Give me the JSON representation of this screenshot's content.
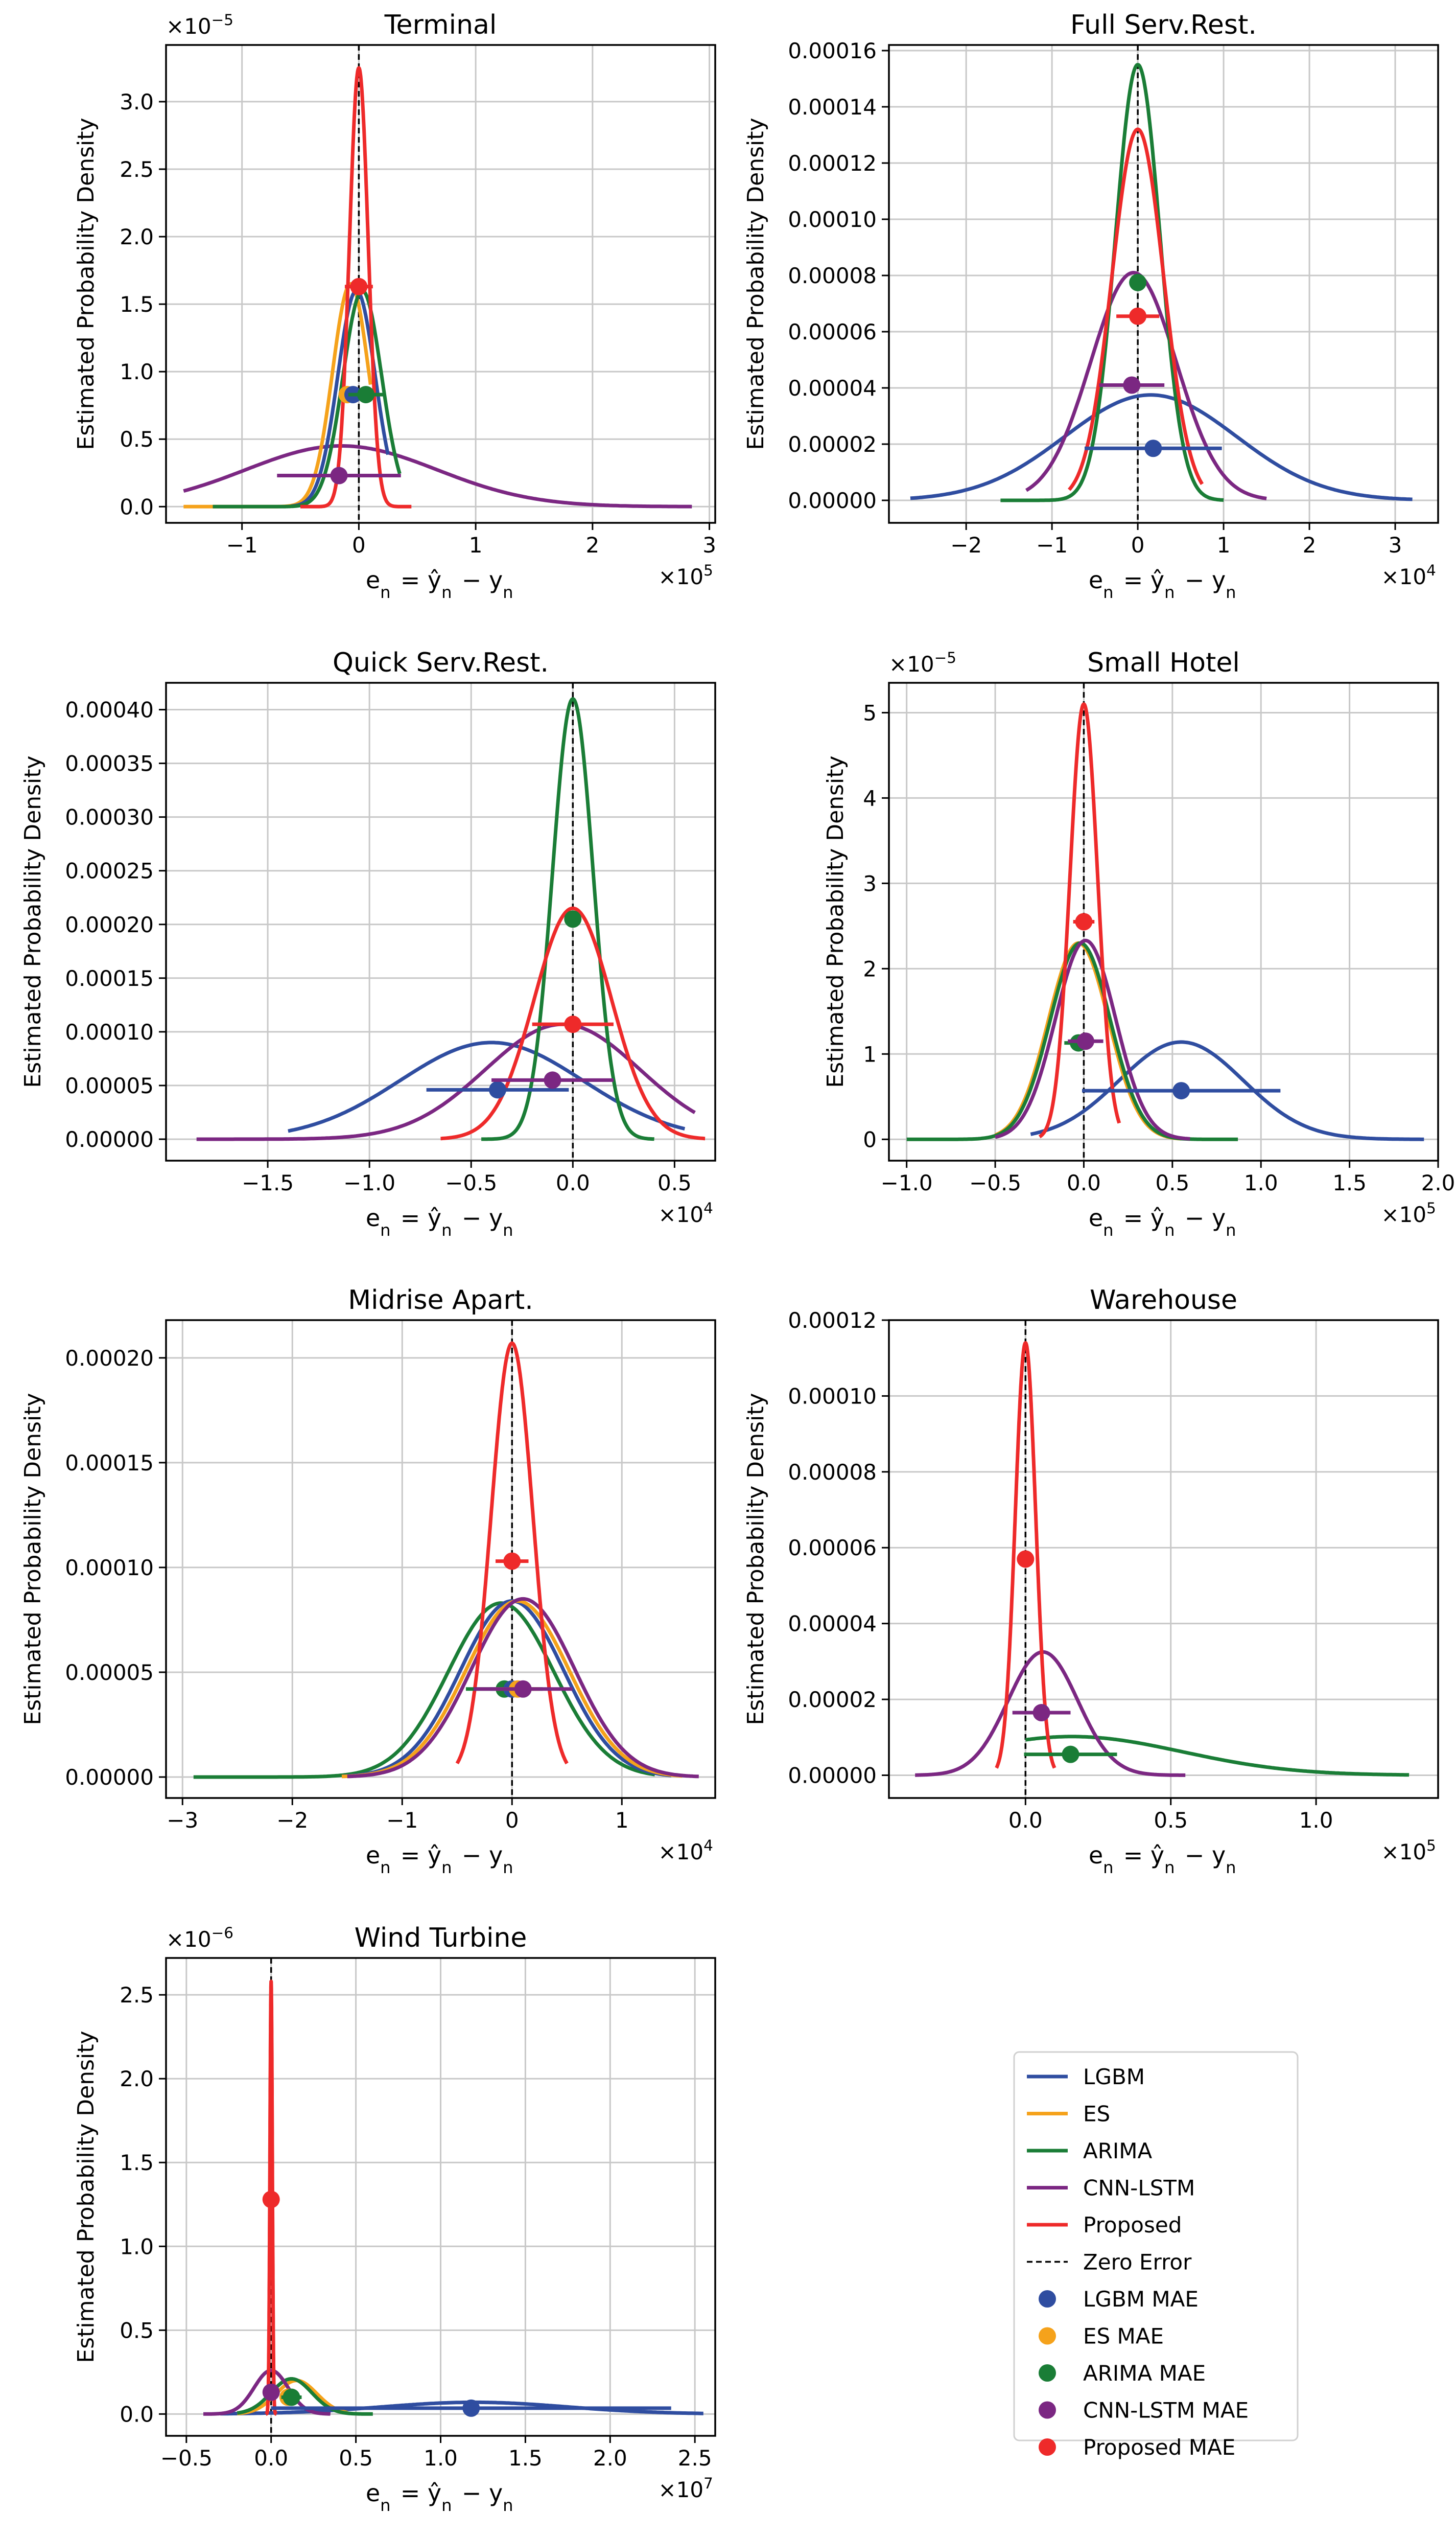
{
  "colors": {
    "LGBM": "#2f4da0",
    "ES": "#f5a21b",
    "ARIMA": "#1a7d36",
    "CNN-LSTM": "#7b2782",
    "Proposed": "#ee2a2a",
    "zero": "#000000",
    "grid": "#c8c8c8"
  },
  "legend": {
    "entries": [
      {
        "label": "LGBM",
        "kind": "line",
        "key": "LGBM"
      },
      {
        "label": "ES",
        "kind": "line",
        "key": "ES"
      },
      {
        "label": "ARIMA",
        "kind": "line",
        "key": "ARIMA"
      },
      {
        "label": "CNN-LSTM",
        "kind": "line",
        "key": "CNN-LSTM"
      },
      {
        "label": "Proposed",
        "kind": "line",
        "key": "Proposed"
      },
      {
        "label": "Zero Error",
        "kind": "dash",
        "key": "zero"
      },
      {
        "label": "LGBM MAE",
        "kind": "marker",
        "key": "LGBM"
      },
      {
        "label": "ES MAE",
        "kind": "marker",
        "key": "ES"
      },
      {
        "label": "ARIMA MAE",
        "kind": "marker",
        "key": "ARIMA"
      },
      {
        "label": "CNN-LSTM MAE",
        "kind": "marker",
        "key": "CNN-LSTM"
      },
      {
        "label": "Proposed MAE",
        "kind": "marker",
        "key": "Proposed"
      }
    ]
  },
  "chart_data": [
    {
      "type": "line",
      "title": "Terminal",
      "xlabel": "e_n = ŷ_n − y_n",
      "ylabel": "Estimated Probability Density",
      "xmult": "×10^5",
      "ymult": "×10^−5",
      "xlim": [
        -1.65,
        3.05
      ],
      "ylim": [
        -0.12,
        3.42
      ],
      "xticks": [
        -1,
        0,
        1,
        2,
        3
      ],
      "xtick_labels": [
        "−1",
        "0",
        "1",
        "2",
        "3"
      ],
      "yticks": [
        0,
        0.5,
        1,
        1.5,
        2,
        2.5,
        3
      ],
      "ytick_labels": [
        "0.0",
        "0.5",
        "1.0",
        "1.5",
        "2.0",
        "2.5",
        "3.0"
      ],
      "grid": true,
      "curves": [
        {
          "key": "CNN-LSTM",
          "mu": -0.15,
          "sd": 0.82,
          "peak": 0.45,
          "range": [
            -1.5,
            2.85
          ]
        },
        {
          "key": "ES",
          "mu": -0.07,
          "sd": 0.155,
          "peak": 1.65,
          "range": [
            -1.5,
            0.1
          ]
        },
        {
          "key": "LGBM",
          "mu": -0.02,
          "sd": 0.16,
          "peak": 1.6,
          "range": [
            -0.58,
            0.25
          ]
        },
        {
          "key": "ARIMA",
          "mu": 0.03,
          "sd": 0.165,
          "peak": 1.6,
          "range": [
            -1.25,
            0.35
          ]
        },
        {
          "key": "Proposed",
          "mu": 0.0,
          "sd": 0.08,
          "peak": 3.25,
          "range": [
            -0.5,
            0.45
          ]
        }
      ],
      "mae": [
        {
          "key": "CNN-LSTM",
          "x": -0.17,
          "y": 0.23,
          "err": 0.53
        },
        {
          "key": "ES",
          "x": -0.1,
          "y": 0.83,
          "err": 0.05
        },
        {
          "key": "LGBM",
          "x": -0.05,
          "y": 0.83,
          "err": 0.05
        },
        {
          "key": "ARIMA",
          "x": 0.06,
          "y": 0.83,
          "err": 0.15
        },
        {
          "key": "Proposed",
          "x": 0.0,
          "y": 1.63,
          "err": 0.12
        }
      ]
    },
    {
      "type": "line",
      "title": "Full Serv.Rest.",
      "xlabel": "e_n = ŷ_n − y_n",
      "ylabel": "Estimated Probability Density",
      "xmult": "×10^4",
      "ymult": "",
      "xlim": [
        -2.9,
        3.5
      ],
      "ylim": [
        -8e-06,
        0.000162
      ],
      "xticks": [
        -2,
        -1,
        0,
        1,
        2,
        3
      ],
      "xtick_labels": [
        "−2",
        "−1",
        "0",
        "1",
        "2",
        "3"
      ],
      "yticks": [
        0,
        2e-05,
        4e-05,
        6e-05,
        8e-05,
        0.0001,
        0.00012,
        0.00014,
        0.00016
      ],
      "ytick_labels": [
        "0.00000",
        "0.00002",
        "0.00004",
        "0.00006",
        "0.00008",
        "0.00010",
        "0.00012",
        "0.00014",
        "0.00016"
      ],
      "grid": true,
      "curves": [
        {
          "key": "LGBM",
          "mu": 0.15,
          "sd": 1.0,
          "peak": 3.75e-05,
          "range": [
            -2.65,
            3.2
          ]
        },
        {
          "key": "CNN-LSTM",
          "mu": -0.05,
          "sd": 0.5,
          "peak": 8.1e-05,
          "range": [
            -1.3,
            1.5
          ]
        },
        {
          "key": "ARIMA",
          "mu": 0.0,
          "sd": 0.26,
          "peak": 0.000155,
          "range": [
            -1.6,
            1.0
          ]
        },
        {
          "key": "Proposed",
          "mu": 0.0,
          "sd": 0.3,
          "peak": 0.000132,
          "range": [
            -0.8,
            0.75
          ]
        }
      ],
      "mae": [
        {
          "key": "LGBM",
          "x": 0.18,
          "y": 1.85e-05,
          "err": 0.8
        },
        {
          "key": "CNN-LSTM",
          "x": -0.07,
          "y": 4.1e-05,
          "err": 0.38
        },
        {
          "key": "ARIMA",
          "x": 0.0,
          "y": 7.75e-05,
          "err": 0.0
        },
        {
          "key": "Proposed",
          "x": 0.0,
          "y": 6.55e-05,
          "err": 0.25
        }
      ]
    },
    {
      "type": "line",
      "title": "Quick Serv.Rest.",
      "xlabel": "e_n = ŷ_n − y_n",
      "ylabel": "Estimated Probability Density",
      "xmult": "×10^4",
      "ymult": "",
      "xlim": [
        -2.0,
        0.7
      ],
      "ylim": [
        -2e-05,
        0.000425
      ],
      "xticks": [
        -1.5,
        -1.0,
        -0.5,
        0.0,
        0.5
      ],
      "xtick_labels": [
        "−1.5",
        "−1.0",
        "−0.5",
        "0.0",
        "0.5"
      ],
      "yticks": [
        0,
        5e-05,
        0.0001,
        0.00015,
        0.0002,
        0.00025,
        0.0003,
        0.00035,
        0.0004
      ],
      "ytick_labels": [
        "0.00000",
        "0.00005",
        "0.00010",
        "0.00015",
        "0.00020",
        "0.00025",
        "0.00030",
        "0.00035",
        "0.00040"
      ],
      "grid": true,
      "curves": [
        {
          "key": "LGBM",
          "mu": -0.4,
          "sd": 0.45,
          "peak": 9e-05,
          "range": [
            -1.4,
            0.55
          ]
        },
        {
          "key": "CNN-LSTM",
          "mu": -0.05,
          "sd": 0.38,
          "peak": 0.000107,
          "range": [
            -1.85,
            0.6
          ]
        },
        {
          "key": "ARIMA",
          "mu": 0.0,
          "sd": 0.1,
          "peak": 0.00041,
          "range": [
            -0.45,
            0.4
          ]
        },
        {
          "key": "Proposed",
          "mu": 0.0,
          "sd": 0.19,
          "peak": 0.000215,
          "range": [
            -0.65,
            0.65
          ]
        }
      ],
      "mae": [
        {
          "key": "LGBM",
          "x": -0.37,
          "y": 4.6e-05,
          "err": 0.35
        },
        {
          "key": "CNN-LSTM",
          "x": -0.1,
          "y": 5.5e-05,
          "err": 0.3
        },
        {
          "key": "ARIMA",
          "x": 0.0,
          "y": 0.000205,
          "err": 0.0
        },
        {
          "key": "Proposed",
          "x": 0.0,
          "y": 0.000107,
          "err": 0.2
        }
      ]
    },
    {
      "type": "line",
      "title": "Small Hotel",
      "xlabel": "e_n = ŷ_n − y_n",
      "ylabel": "Estimated Probability Density",
      "xmult": "×10^5",
      "ymult": "×10^−5",
      "xlim": [
        -1.1,
        2.0
      ],
      "ylim": [
        -0.25,
        5.35
      ],
      "xticks": [
        -1.0,
        -0.5,
        0.0,
        0.5,
        1.0,
        1.5,
        2.0
      ],
      "xtick_labels": [
        "−1.0",
        "−0.5",
        "0.0",
        "0.5",
        "1.0",
        "1.5",
        "2.0"
      ],
      "yticks": [
        0,
        1,
        2,
        3,
        4,
        5
      ],
      "ytick_labels": [
        "0",
        "1",
        "2",
        "3",
        "4",
        "5"
      ],
      "grid": true,
      "curves": [
        {
          "key": "LGBM",
          "mu": 0.55,
          "sd": 0.35,
          "peak": 1.14,
          "range": [
            -0.3,
            1.92
          ]
        },
        {
          "key": "ES",
          "mu": -0.03,
          "sd": 0.17,
          "peak": 2.3,
          "range": [
            -0.5,
            0.55
          ]
        },
        {
          "key": "ARIMA",
          "mu": -0.02,
          "sd": 0.17,
          "peak": 2.3,
          "range": [
            -1.0,
            0.87
          ]
        },
        {
          "key": "CNN-LSTM",
          "mu": 0.01,
          "sd": 0.17,
          "peak": 2.33,
          "range": [
            -0.5,
            0.6
          ]
        },
        {
          "key": "Proposed",
          "mu": 0.0,
          "sd": 0.078,
          "peak": 5.1,
          "range": [
            -0.25,
            0.2
          ]
        }
      ],
      "mae": [
        {
          "key": "LGBM",
          "x": 0.55,
          "y": 0.57,
          "err": 0.56
        },
        {
          "key": "ARIMA",
          "x": -0.03,
          "y": 1.13,
          "err": 0.08
        },
        {
          "key": "CNN-LSTM",
          "x": 0.01,
          "y": 1.15,
          "err": 0.1
        },
        {
          "key": "Proposed",
          "x": 0.0,
          "y": 2.55,
          "err": 0.06
        }
      ]
    },
    {
      "type": "line",
      "title": "Midrise Apart.",
      "xlabel": "e_n = ŷ_n − y_n",
      "ylabel": "Estimated Probability Density",
      "xmult": "×10^4",
      "ymult": "",
      "xlim": [
        -3.15,
        1.85
      ],
      "ylim": [
        -1e-05,
        0.000218
      ],
      "xticks": [
        -3,
        -2,
        -1,
        0,
        1
      ],
      "xtick_labels": [
        "−3",
        "−2",
        "−1",
        "0",
        "1"
      ],
      "yticks": [
        0,
        5e-05,
        0.0001,
        0.00015,
        0.0002
      ],
      "ytick_labels": [
        "0.00000",
        "0.00005",
        "0.00010",
        "0.00015",
        "0.00020"
      ],
      "grid": true,
      "curves": [
        {
          "key": "ARIMA",
          "mu": -0.1,
          "sd": 0.48,
          "peak": 8.3e-05,
          "range": [
            -2.9,
            1.3
          ]
        },
        {
          "key": "LGBM",
          "mu": 0.0,
          "sd": 0.47,
          "peak": 8.4e-05,
          "range": [
            -1.55,
            1.45
          ]
        },
        {
          "key": "ES",
          "mu": 0.05,
          "sd": 0.47,
          "peak": 8.4e-05,
          "range": [
            -1.55,
            1.55
          ]
        },
        {
          "key": "CNN-LSTM",
          "mu": 0.1,
          "sd": 0.47,
          "peak": 8.5e-05,
          "range": [
            -1.5,
            1.7
          ]
        },
        {
          "key": "Proposed",
          "mu": 0.0,
          "sd": 0.19,
          "peak": 0.000207,
          "range": [
            -0.5,
            0.5
          ]
        }
      ],
      "mae": [
        {
          "key": "ARIMA",
          "x": -0.07,
          "y": 4.2e-05,
          "err": 0.35
        },
        {
          "key": "LGBM",
          "x": 0.0,
          "y": 4.2e-05,
          "err": 0.2
        },
        {
          "key": "ES",
          "x": 0.05,
          "y": 4.2e-05,
          "err": 0.2
        },
        {
          "key": "CNN-LSTM",
          "x": 0.1,
          "y": 4.2e-05,
          "err": 0.45
        },
        {
          "key": "Proposed",
          "x": 0.0,
          "y": 0.000103,
          "err": 0.15
        }
      ]
    },
    {
      "type": "line",
      "title": "Warehouse",
      "xlabel": "e_n = ŷ_n − y_n",
      "ylabel": "Estimated Probability Density",
      "xmult": "×10^5",
      "ymult": "",
      "xlim": [
        -0.47,
        1.42
      ],
      "ylim": [
        -6e-06,
        0.00012
      ],
      "xticks": [
        0.0,
        0.5,
        1.0
      ],
      "xtick_labels": [
        "0.0",
        "0.5",
        "1.0"
      ],
      "yticks": [
        0,
        2e-05,
        4e-05,
        6e-05,
        8e-05,
        0.0001,
        0.00012
      ],
      "ytick_labels": [
        "0.00000",
        "0.00002",
        "0.00004",
        "0.00006",
        "0.00008",
        "0.00010",
        "0.00012"
      ],
      "grid": true,
      "curves": [
        {
          "key": "ARIMA",
          "mu": 0.16,
          "sd": 0.38,
          "peak": 1.02e-05,
          "range": [
            0.0,
            1.32
          ]
        },
        {
          "key": "CNN-LSTM",
          "mu": 0.06,
          "sd": 0.12,
          "peak": 3.25e-05,
          "range": [
            -0.38,
            0.55
          ]
        },
        {
          "key": "Proposed",
          "mu": 0.0,
          "sd": 0.035,
          "peak": 0.000114,
          "range": [
            -0.1,
            0.1
          ]
        }
      ],
      "mae": [
        {
          "key": "ARIMA",
          "x": 0.155,
          "y": 5.5e-06,
          "err": 0.16
        },
        {
          "key": "CNN-LSTM",
          "x": 0.055,
          "y": 1.65e-05,
          "err": 0.1
        },
        {
          "key": "Proposed",
          "x": 0.0,
          "y": 5.7e-05,
          "err": 0.0
        }
      ]
    },
    {
      "type": "line",
      "title": "Wind Turbine",
      "xlabel": "e_n = ŷ_n − y_n",
      "ylabel": "Estimated Probability Density",
      "xmult": "×10^7",
      "ymult": "×10^−6",
      "xlim": [
        -0.62,
        2.62
      ],
      "ylim": [
        -0.13,
        2.72
      ],
      "xticks": [
        -0.5,
        0.0,
        0.5,
        1.0,
        1.5,
        2.0,
        2.5
      ],
      "xtick_labels": [
        "−0.5",
        "0.0",
        "0.5",
        "1.0",
        "1.5",
        "2.0",
        "2.5"
      ],
      "yticks": [
        0,
        0.5,
        1,
        1.5,
        2,
        2.5
      ],
      "ytick_labels": [
        "0.0",
        "0.5",
        "1.0",
        "1.5",
        "2.0",
        "2.5"
      ],
      "grid": true,
      "curves": [
        {
          "key": "LGBM",
          "mu": 1.2,
          "sd": 0.55,
          "peak": 0.07,
          "range": [
            -0.3,
            2.55
          ]
        },
        {
          "key": "ES",
          "mu": 0.15,
          "sd": 0.12,
          "peak": 0.2,
          "range": [
            -0.2,
            0.45
          ]
        },
        {
          "key": "ARIMA",
          "mu": 0.12,
          "sd": 0.12,
          "peak": 0.21,
          "range": [
            -0.2,
            0.6
          ]
        },
        {
          "key": "CNN-LSTM",
          "mu": 0.0,
          "sd": 0.1,
          "peak": 0.26,
          "range": [
            -0.4,
            0.35
          ]
        },
        {
          "key": "Proposed",
          "mu": 0.0,
          "sd": 0.007,
          "peak": 2.58,
          "range": [
            -0.03,
            0.03
          ]
        }
      ],
      "mae": [
        {
          "key": "LGBM",
          "x": 1.18,
          "y": 0.035,
          "err": 1.18
        },
        {
          "key": "ES",
          "x": 0.1,
          "y": 0.1,
          "err": 0.05
        },
        {
          "key": "ARIMA",
          "x": 0.12,
          "y": 0.1,
          "err": 0.06
        },
        {
          "key": "CNN-LSTM",
          "x": 0.0,
          "y": 0.13,
          "err": 0.05
        },
        {
          "key": "Proposed",
          "x": 0.0,
          "y": 1.28,
          "err": 0.0
        }
      ]
    }
  ]
}
